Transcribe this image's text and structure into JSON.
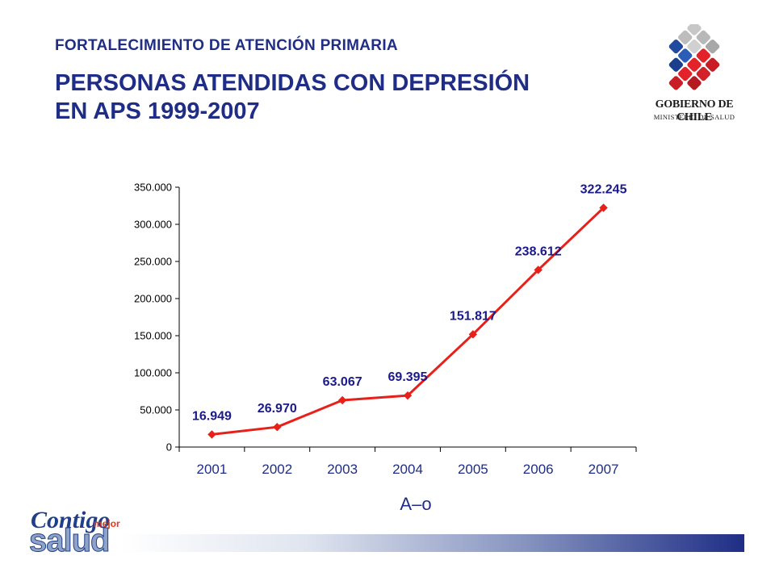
{
  "header": {
    "subtitle": "FORTALECIMIENTO DE ATENCIÓN PRIMARIA",
    "title_line1": "PERSONAS ATENDIDAS CON DEPRESIÓN",
    "title_line2": "EN APS 1999-2007"
  },
  "logo": {
    "line1": "GOBIERNO DE CHILE",
    "line2": "MINISTERIO DE SALUD"
  },
  "footer": {
    "brand_contigo": "Contigo",
    "brand_mejor": "mejor",
    "brand_salud": "salud"
  },
  "colors": {
    "title": "#1f2d86",
    "series_line": "#e8201a",
    "data_label": "#1a1a8c"
  },
  "chart_data": {
    "type": "line",
    "categories": [
      "2001",
      "2002",
      "2003",
      "2004",
      "2005",
      "2006",
      "2007"
    ],
    "values": [
      16949,
      26970,
      63067,
      69395,
      151817,
      238612,
      322245
    ],
    "data_labels": [
      "16.949",
      "26.970",
      "63.067",
      "69.395",
      "151.817",
      "238.612",
      "322.245"
    ],
    "y_ticks": [
      0,
      50000,
      100000,
      150000,
      200000,
      250000,
      300000,
      350000
    ],
    "y_tick_labels": [
      "0",
      "50.000",
      "100.000",
      "150.000",
      "200.000",
      "250.000",
      "300.000",
      "350.000"
    ],
    "ylim": [
      0,
      350000
    ],
    "xlabel": "A–o",
    "ylabel": "",
    "title": "",
    "grid": false,
    "legend": "none"
  }
}
